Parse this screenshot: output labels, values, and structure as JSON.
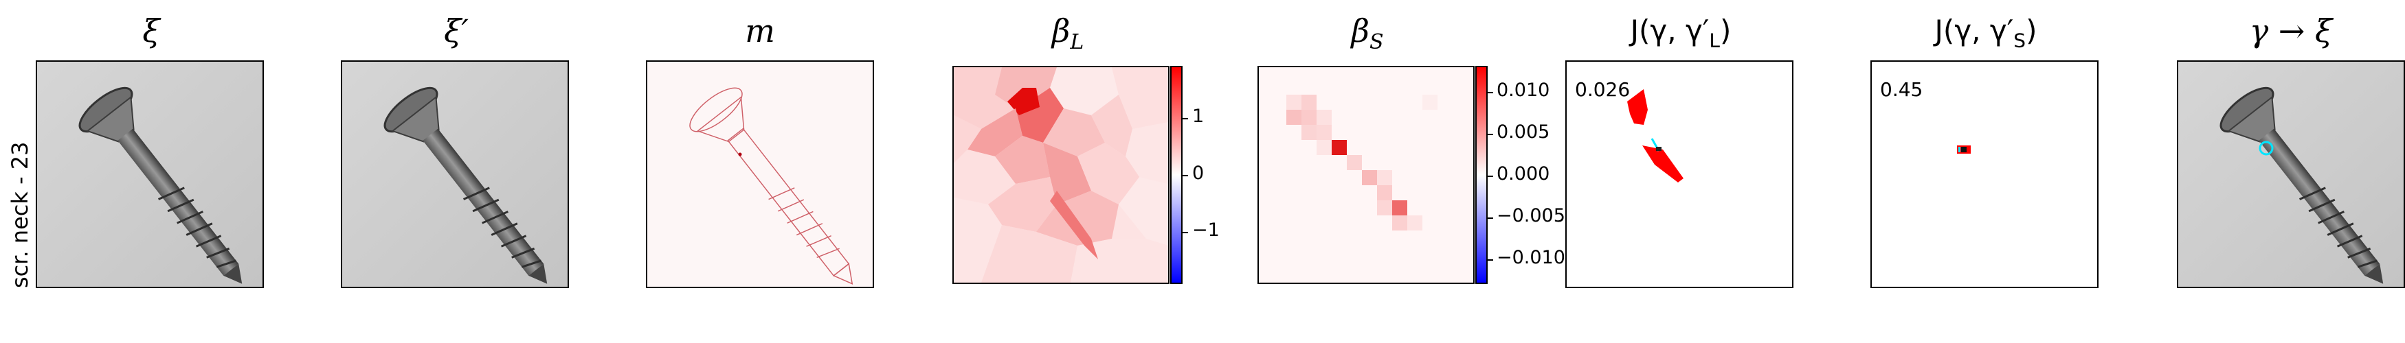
{
  "row_label": "scr. neck - 23",
  "panels": {
    "xi": {
      "title": "ξ"
    },
    "xi_prime": {
      "title": "ξ′"
    },
    "m": {
      "title": "m"
    },
    "beta_l": {
      "title": "β",
      "sub": "L",
      "ticks": [
        "1",
        "0",
        "−1"
      ]
    },
    "beta_s": {
      "title": "β",
      "sub": "S",
      "ticks": [
        "0.010",
        "0.005",
        "0.000",
        "−0.005",
        "−0.010"
      ]
    },
    "j_l": {
      "title": "J(γ, γ′",
      "sub": "L",
      "close": ")",
      "value": "0.026"
    },
    "j_s": {
      "title": "J(γ, γ′",
      "sub": "S",
      "close": ")",
      "value": "0.45"
    },
    "gamma_xi": {
      "title": "γ → ξ"
    }
  },
  "colors": {
    "red": "#ff0000",
    "blue": "#0000ff",
    "cyan": "#00e5ff",
    "bg_gray": "#cfcfcf"
  }
}
